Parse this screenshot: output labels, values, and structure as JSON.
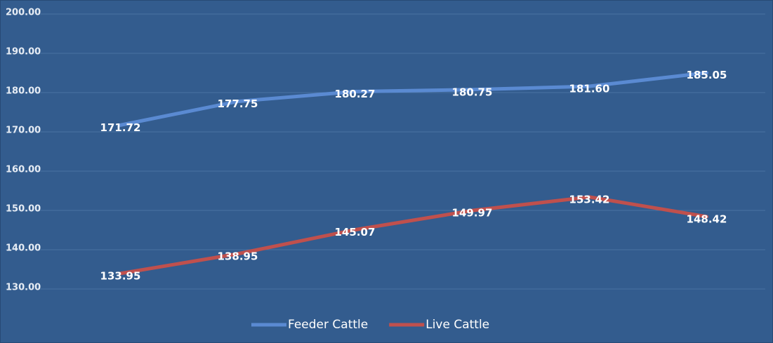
{
  "chart_data": {
    "type": "line",
    "categories": [
      null,
      null,
      null,
      null,
      null,
      null
    ],
    "series": [
      {
        "name": "Feeder Cattle",
        "color": "#5a8ad2",
        "values": [
          171.72,
          177.75,
          180.27,
          180.75,
          181.6,
          185.05
        ],
        "value_labels": [
          "171.72",
          "177.75",
          "180.27",
          "180.75",
          "181.60",
          "185.05"
        ]
      },
      {
        "name": "Live Cattle",
        "color": "#c0504d",
        "values": [
          133.95,
          138.95,
          145.07,
          149.97,
          153.42,
          148.42
        ],
        "value_labels": [
          "133.95",
          "138.95",
          "145.07",
          "149.97",
          "153.42",
          "148.42"
        ]
      }
    ],
    "ylim": [
      130,
      200
    ],
    "yticks": [
      {
        "value": 130,
        "label": "130.00"
      },
      {
        "value": 140,
        "label": "140.00"
      },
      {
        "value": 150,
        "label": "150.00"
      },
      {
        "value": 160,
        "label": "160.00"
      },
      {
        "value": 170,
        "label": "170.00"
      },
      {
        "value": 180,
        "label": "180.00"
      },
      {
        "value": 190,
        "label": "190.00"
      },
      {
        "value": 200,
        "label": "200.00"
      }
    ],
    "grid": true,
    "legend": "bottom"
  }
}
